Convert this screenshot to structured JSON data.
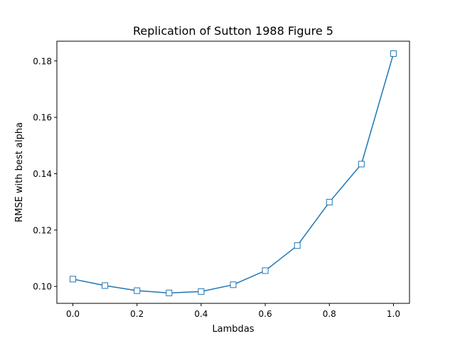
{
  "chart_data": {
    "type": "line",
    "title": "Replication of Sutton 1988 Figure 5",
    "xlabel": "Lambdas",
    "ylabel": "RMSE with best alpha",
    "xlim": [
      -0.05,
      1.05
    ],
    "ylim": [
      0.094,
      0.187
    ],
    "xticks": [
      "0.0",
      "0.2",
      "0.4",
      "0.6",
      "0.8",
      "1.0"
    ],
    "yticks": [
      "0.10",
      "0.12",
      "0.14",
      "0.16",
      "0.18"
    ],
    "grid": false,
    "series": [
      {
        "color": "#1f77b4",
        "marker": "square-open",
        "x": [
          0.0,
          0.1,
          0.2,
          0.3,
          0.4,
          0.5,
          0.6,
          0.7,
          0.8,
          0.9,
          1.0
        ],
        "y": [
          0.1026,
          0.1003,
          0.0985,
          0.0977,
          0.0982,
          0.1006,
          0.1056,
          0.1145,
          0.1299,
          0.1434,
          0.1826
        ]
      }
    ]
  }
}
